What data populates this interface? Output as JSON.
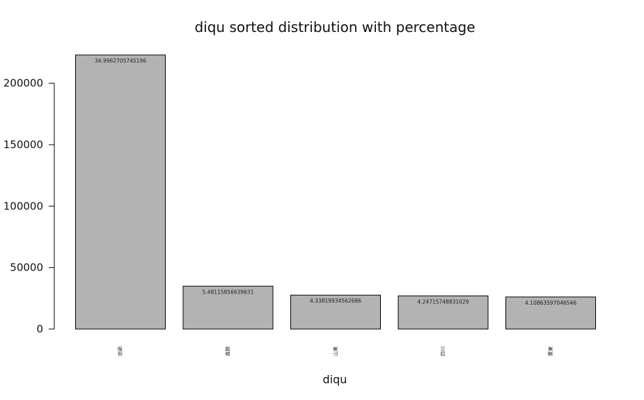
{
  "chart_data": {
    "type": "bar",
    "title": "diqu sorted distribution with percentage",
    "xlabel": "diqu",
    "ylabel": "",
    "categories": [
      "京師",
      "直隸",
      "山東",
      "四川",
      "廣東"
    ],
    "values": [
      223000,
      34900,
      27600,
      27000,
      26100
    ],
    "data_labels": [
      "34.9962705745196",
      "5.48115856639631",
      "4.33819934562686",
      "4.24715748831029",
      "4.10863597046546"
    ],
    "yticks": [
      0,
      50000,
      100000,
      150000,
      200000
    ],
    "ytick_labels": [
      "0",
      "50000",
      "100000",
      "150000",
      "200000"
    ],
    "ylim": [
      0,
      223000
    ],
    "bar_color": "#b3b3b3",
    "grid": false,
    "legend": "none"
  }
}
